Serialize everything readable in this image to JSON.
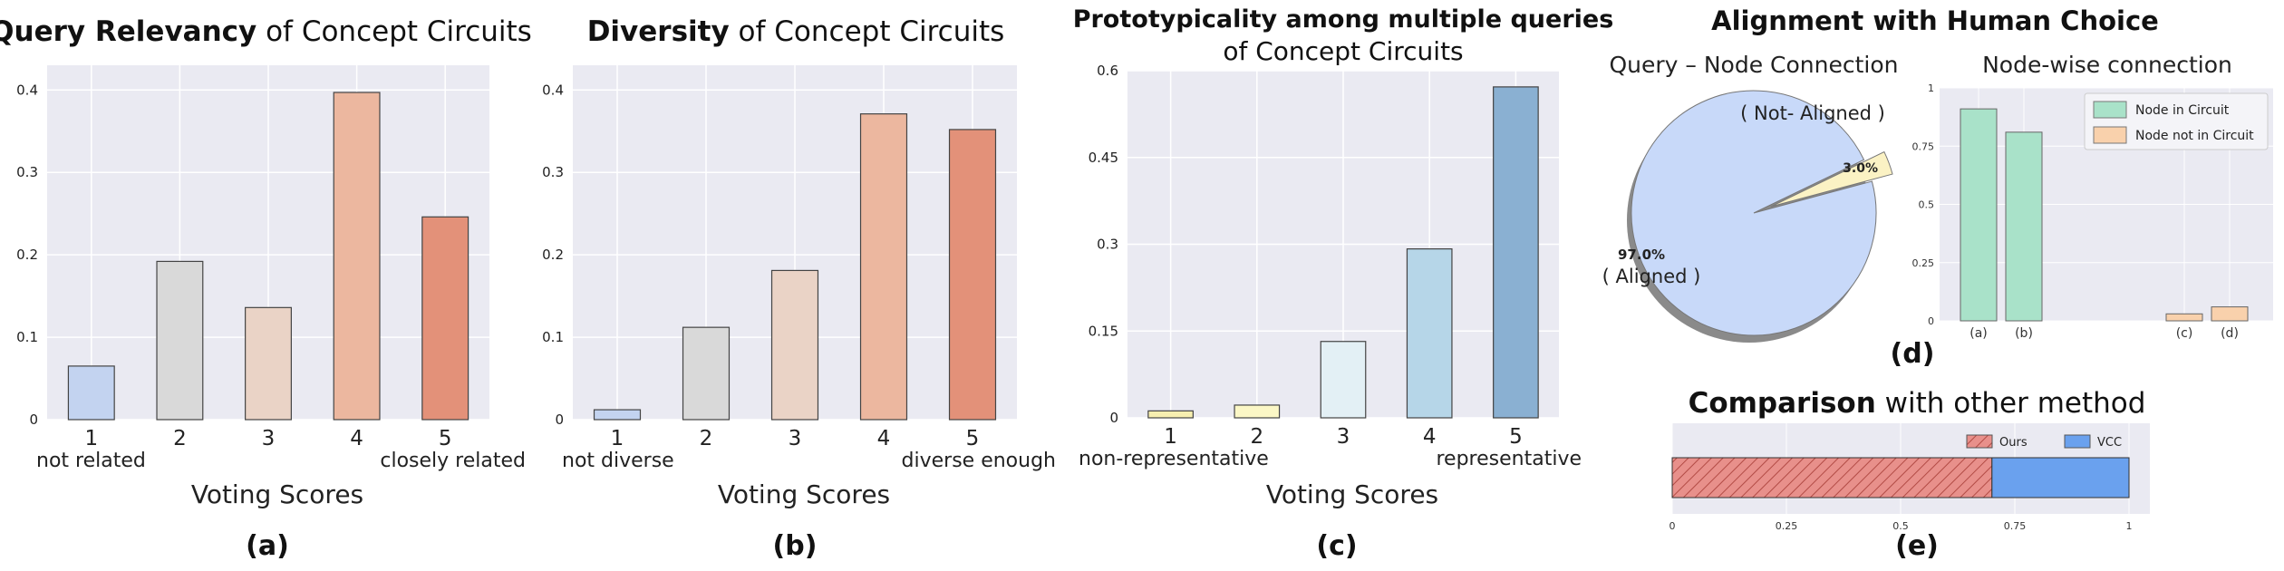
{
  "chart_data": [
    {
      "id": "a",
      "type": "bar",
      "title_bold": "Query Relevancy",
      "title_rest": " of Concept Circuits",
      "categories": [
        "1",
        "2",
        "3",
        "4",
        "5"
      ],
      "category_notes": [
        "not related",
        "",
        "",
        "",
        "closely related"
      ],
      "values": [
        0.065,
        0.192,
        0.136,
        0.397,
        0.246
      ],
      "colors": [
        "#c3d3f0",
        "#d9d9d9",
        "#ead3c6",
        "#ecb79f",
        "#e39179"
      ],
      "yticks": [
        "0",
        "0.1",
        "0.2",
        "0.3",
        "0.4"
      ],
      "ylim": [
        0,
        0.43
      ],
      "xlabel": "Voting Scores",
      "panel_label": "(a)",
      "grid": true
    },
    {
      "id": "b",
      "type": "bar",
      "title_bold": "Diversity",
      "title_rest": " of Concept Circuits",
      "categories": [
        "1",
        "2",
        "3",
        "4",
        "5"
      ],
      "category_notes": [
        "not diverse",
        "",
        "",
        "",
        "diverse enough"
      ],
      "values": [
        0.012,
        0.112,
        0.181,
        0.371,
        0.352
      ],
      "colors": [
        "#c3d3f0",
        "#d9d9d9",
        "#ead3c6",
        "#ecb79f",
        "#e39179"
      ],
      "yticks": [
        "0",
        "0.1",
        "0.2",
        "0.3",
        "0.4"
      ],
      "ylim": [
        0,
        0.43
      ],
      "xlabel": "Voting Scores",
      "panel_label": "(b)",
      "grid": true
    },
    {
      "id": "c",
      "type": "bar",
      "title_line1": "Prototypicality among multiple queries",
      "title_line2": "of Concept Circuits",
      "categories": [
        "1",
        "2",
        "3",
        "4",
        "5"
      ],
      "category_notes": [
        "non-representative",
        "",
        "",
        "",
        "representative"
      ],
      "values": [
        0.012,
        0.022,
        0.132,
        0.292,
        0.572
      ],
      "colors": [
        "#f7efb0",
        "#fbf7c6",
        "#e3f0f5",
        "#b6d6e8",
        "#8ab0d2"
      ],
      "yticks": [
        "0",
        "0.15",
        "0.3",
        "0.45",
        "0.6"
      ],
      "ylim": [
        0,
        0.6
      ],
      "xlabel": "Voting Scores",
      "panel_label": "(c)",
      "grid": true
    }
  ],
  "panel_d": {
    "title": "Alignment with Human Choice",
    "panel_label": "(d)",
    "pie": {
      "type": "pie",
      "title": "Query – Node Connection",
      "slices": [
        {
          "label": "( Aligned )",
          "pct_text": "97.0%",
          "value": 97.0,
          "color": "#c8d9f9"
        },
        {
          "label": "( Not- Aligned )",
          "pct_text": "3.0%",
          "value": 3.0,
          "color": "#fbf2c4"
        }
      ]
    },
    "bars": {
      "type": "bar",
      "title": "Node-wise connection",
      "categories": [
        "(a)",
        "(b)",
        "(c)",
        "(d)"
      ],
      "series": [
        {
          "name": "Node in Circuit",
          "color": "#a9e2c9"
        },
        {
          "name": "Node not in Circuit",
          "color": "#f9d1ac"
        }
      ],
      "values": [
        0.91,
        0.81,
        0.03,
        0.06
      ],
      "value_series": [
        0,
        0,
        1,
        1
      ],
      "yticks": [
        "0",
        "0.25",
        "0.5",
        "0.75",
        "1"
      ],
      "ylim": [
        0,
        1
      ]
    }
  },
  "panel_e": {
    "type": "bar",
    "title_bold": "Comparison",
    "title_rest": " with other method",
    "panel_label": "(e)",
    "series": [
      {
        "name": "Ours",
        "value": 0.7,
        "color": "#e8908b"
      },
      {
        "name": "VCC",
        "value": 0.3,
        "color": "#6aa1ee"
      }
    ],
    "xticks": [
      "0",
      "0.25",
      "0.5",
      "0.75",
      "1"
    ],
    "xlim": [
      0,
      1
    ]
  }
}
